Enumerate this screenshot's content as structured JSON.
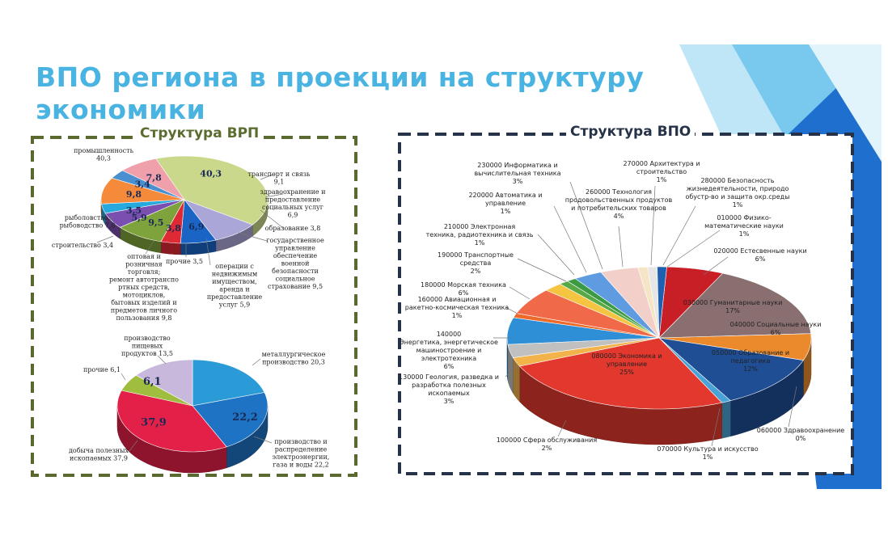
{
  "slide": {
    "title_line1": "ВПО региона в проекции на структуру",
    "title_line2": "экономики",
    "vrp_frame_title": "Структура ВРП",
    "vpo_frame_title": "Структура ВПО"
  },
  "colors": {
    "title": "#49b3e2",
    "vrp_frame": "#5a6930",
    "vrp_title": "#5b6d2e",
    "vpo_frame": "#263248",
    "vpo_title": "#263248"
  },
  "chart_data": [
    {
      "type": "pie",
      "slices": [
        {
          "label": "промышленность",
          "value": 40.3,
          "color": "#c9d88a",
          "inner": "40,3",
          "outer": [
            "промышленность",
            "40,3"
          ]
        },
        {
          "label": "транспорт и связь",
          "value": 9.1,
          "color": "#aba6d8",
          "inner": "",
          "outer": [
            "транспорт и связь",
            "9,1"
          ]
        },
        {
          "label": "здравоохранение и предоставление социальных услуг",
          "value": 6.9,
          "color": "#1a64c6",
          "inner": "6,9",
          "outer": [
            "здравоохранение и",
            "предоставление",
            "социальных услуг",
            "6,9"
          ]
        },
        {
          "label": "образование",
          "value": 3.8,
          "color": "#df2935",
          "inner": "3,8",
          "outer": [
            "образование 3,8"
          ]
        },
        {
          "label": "государственное управление обеспечение военной безопасности социальное страхование",
          "value": 9.5,
          "color": "#7ea33c",
          "inner": "9,5",
          "outer": [
            "государственное",
            "управление",
            "обеспечение",
            "военной",
            "безопасности",
            "социальное",
            "страхование 9,5"
          ]
        },
        {
          "label": "операции с недвижимым имуществом, аренда и предоставление услуг",
          "value": 5.9,
          "color": "#7a4fb0",
          "inner": "5,9",
          "outer": [
            "операции с",
            "недвижимым",
            "имуществом,",
            "аренда и",
            "предоставление",
            "услуг 5,9"
          ]
        },
        {
          "label": "прочие",
          "value": 3.5,
          "color": "#27a9dd",
          "inner": "3,5",
          "outer": [
            "прочие 3,5"
          ]
        },
        {
          "label": "оптовая и розничная торговля; ремонт автотранспортных средств, мотоциклов, бытовых изделий и предметов личного пользования",
          "value": 9.8,
          "color": "#f58a3a",
          "inner": "9,8",
          "outer": [
            "оптовая и",
            "розничная",
            "торговля;",
            "ремонт автотранспо",
            "ртных средств,",
            "мотоциклов,",
            "бытовых изделий и",
            "предметов личного",
            "пользования 9,8"
          ]
        },
        {
          "label": "строительство",
          "value": 3.4,
          "color": "#4a8fd0",
          "inner": "3,4",
          "outer": [
            "строительство 3,4"
          ]
        },
        {
          "label": "рыболовство, рыбоводство",
          "value": 7.8,
          "color": "#f0a0aa",
          "inner": "7,8",
          "outer": [
            "рыболовство,",
            "рыбоводство 7,8"
          ]
        }
      ]
    },
    {
      "type": "pie",
      "slices": [
        {
          "label": "металлургическое производство",
          "value": 20.3,
          "color": "#2a9bd6",
          "inner": "",
          "outer": [
            "металлургическое",
            "производство 20,3"
          ]
        },
        {
          "label": "производство и распределение электроэнергии, газа и воды",
          "value": 22.2,
          "color": "#1f73c4",
          "inner": "22,2",
          "outer": [
            "производство и",
            "распределение",
            "электроэнергии,",
            "газа и воды 22,2"
          ]
        },
        {
          "label": "добыча полезных ископаемых",
          "value": 37.9,
          "color": "#e32047",
          "inner": "37,9",
          "outer": [
            "добыча полезных",
            "ископаемых 37,9"
          ]
        },
        {
          "label": "прочие",
          "value": 6.1,
          "color": "#9fbd3e",
          "inner": "6,1",
          "outer": [
            "прочие 6,1"
          ]
        },
        {
          "label": "производство пищевых продуктов",
          "value": 13.5,
          "color": "#c7b8dc",
          "inner": "",
          "outer": [
            "производство",
            "пищевых",
            "продуктов 13,5"
          ]
        }
      ]
    },
    {
      "type": "pie",
      "slices": [
        {
          "label": "020000 Естесвенные науки",
          "value": 6,
          "color": "#c81f26",
          "outer": [
            "020000 Естесвенные науки",
            "6%"
          ]
        },
        {
          "label": "030000 Гуманитарные науки",
          "value": 17,
          "color": "#8a6f70",
          "outer": [
            "030000 Гуманитарные науки",
            "17%"
          ]
        },
        {
          "label": "040000 Социальные науки",
          "value": 6,
          "color": "#ea8a2d",
          "outer": [
            "040000 Социальные науки",
            "6%"
          ]
        },
        {
          "label": "050000 Образование и педагогика",
          "value": 12,
          "color": "#1f4e95",
          "outer": [
            "050000 Образование и",
            "педагогика",
            "12%"
          ]
        },
        {
          "label": "060000 Здравоохранение",
          "value": 0,
          "color": "#8a8a8a",
          "outer": [
            "060000 Здравоохранение",
            "0%"
          ]
        },
        {
          "label": "070000 Культура и искусство",
          "value": 1,
          "color": "#4aa3d6",
          "outer": [
            "070000 Культура и искусство",
            "1%"
          ]
        },
        {
          "label": "080000 Экономика и управление",
          "value": 25,
          "color": "#e3382e",
          "outer": [
            "080000 Экономика и",
            "управление",
            "25%"
          ]
        },
        {
          "label": "100000 Сфера обслуживания",
          "value": 2,
          "color": "#f2b34a",
          "outer": [
            "100000 Сфера обслуживания",
            "2%"
          ]
        },
        {
          "label": "130000 Геология, разведка и разработка полезных ископаемых",
          "value": 3,
          "color": "#c0c0c0",
          "outer": [
            "130000 Геология, разведка и",
            "разработка полезных",
            "ископаемых",
            "3%"
          ]
        },
        {
          "label": "140000 Энергетика, энергетическое машиностроение и электротехника",
          "value": 6,
          "color": "#2f8fd6",
          "outer": [
            "140000",
            "Энергетика, энергетическое",
            "машиностроение и",
            "электротехника",
            "6%"
          ]
        },
        {
          "label": "160000 Авиационная и ракетно-космическая техника",
          "value": 1,
          "color": "#ec6b2a",
          "outer": [
            "160000 Авиационная и",
            "ракетно-космическая техника",
            "1%"
          ]
        },
        {
          "label": "180000 Морская техника",
          "value": 6,
          "color": "#f06a4a",
          "outer": [
            "180000 Морская техника",
            "6%"
          ]
        },
        {
          "label": "190000 Транспортные средства",
          "value": 2,
          "color": "#f5c542",
          "outer": [
            "190000 Транспортные",
            "средства",
            "2%"
          ]
        },
        {
          "label": "210000 Электронная техника, радиотехника и связь",
          "value": 1,
          "color": "#58a845",
          "outer": [
            "210000 Электронная",
            "техника, радиотехника и связь",
            "1%"
          ]
        },
        {
          "label": "220000 Автоматика и управление",
          "value": 1,
          "color": "#3d9a44",
          "outer": [
            "220000 Автоматика и",
            "управление",
            "1%"
          ]
        },
        {
          "label": "230000 Информатика и вычислительная техника",
          "value": 3,
          "color": "#5e9be0",
          "outer": [
            "230000 Информатика и",
            "вычислительная техника",
            "3%"
          ]
        },
        {
          "label": "260000 Технология продовольственных продуктов и потребительских товаров",
          "value": 4,
          "color": "#f2cfc8",
          "outer": [
            "260000 Технология",
            "продовольственных продуктов",
            "и потребительских товаров",
            "4%"
          ]
        },
        {
          "label": "270000 Архитектура и строительство",
          "value": 1,
          "color": "#f4e5c4",
          "outer": [
            "270000 Архитектура и",
            "строительство",
            "1%"
          ]
        },
        {
          "label": "280000 Безопасность жизнедеятельности, природо обустр-во и защита окр.среды",
          "value": 1,
          "color": "#e6e6e6",
          "outer": [
            "280000 Безопасность",
            "жизнедеятельности, природо",
            "обустр-во и защита окр.среды",
            "1%"
          ]
        },
        {
          "label": "010000 Физико-математические науки",
          "value": 1,
          "color": "#1e5fb0",
          "outer": [
            "010000 Физико-",
            "математические науки",
            "1%"
          ]
        }
      ]
    }
  ]
}
